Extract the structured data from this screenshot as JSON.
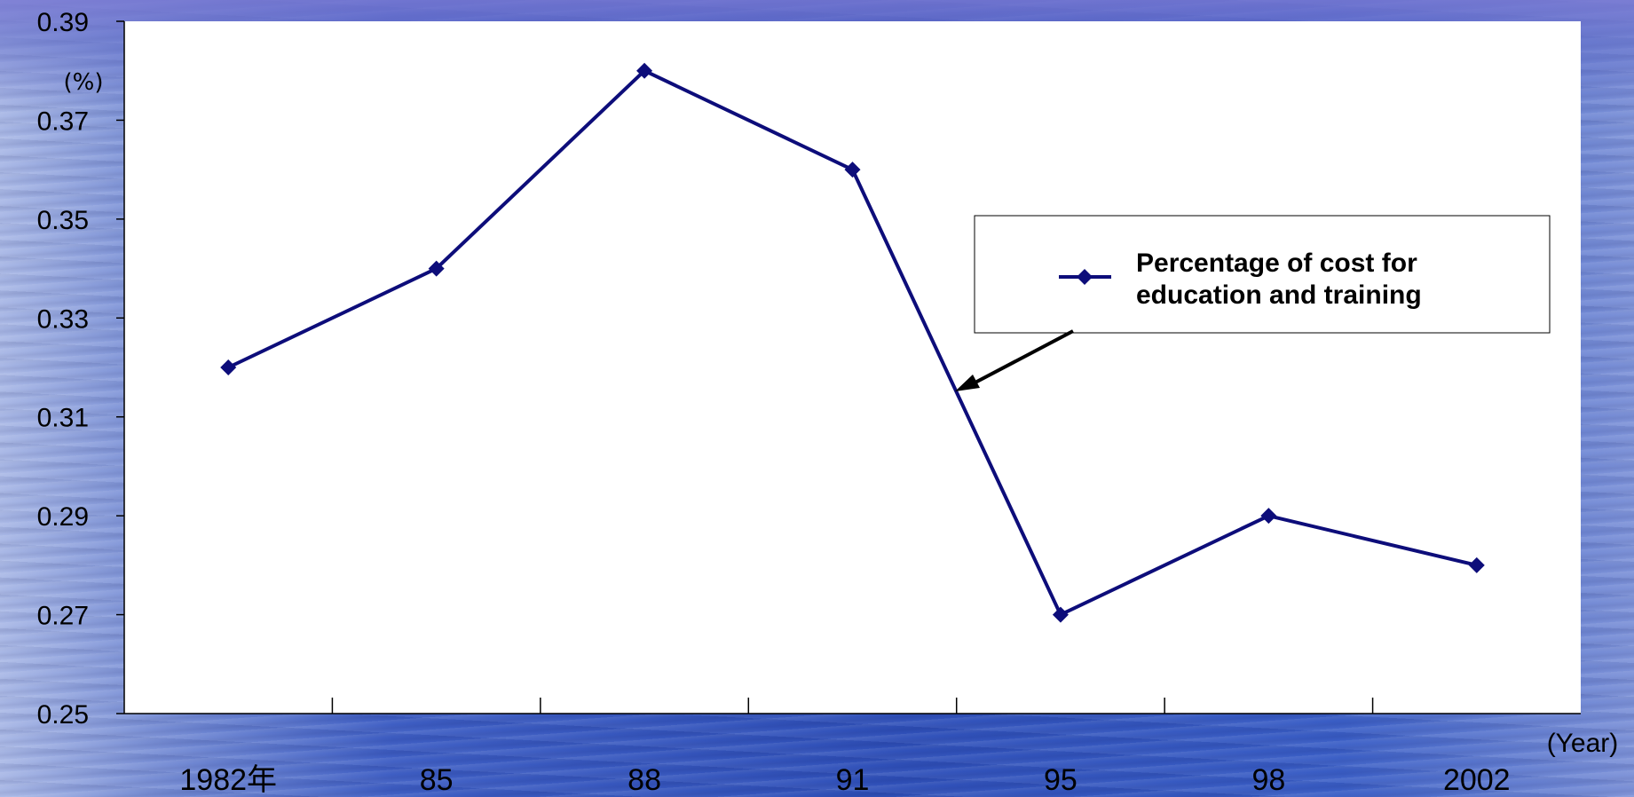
{
  "chart_data": {
    "type": "line",
    "categories": [
      "1982年",
      "85",
      "88",
      "91",
      "95",
      "98",
      "2002"
    ],
    "series": [
      {
        "name": "Percentage of cost for education and training",
        "values": [
          0.32,
          0.34,
          0.38,
          0.36,
          0.27,
          0.29,
          0.28
        ],
        "color": "#0d0d7a",
        "marker": "diamond"
      }
    ],
    "ylabel": "(%)",
    "xlabel": "(Year)",
    "ylim": [
      0.25,
      0.39
    ],
    "yticks": [
      "0.25",
      "0.27",
      "0.29",
      "0.31",
      "0.33",
      "0.35",
      "0.37",
      "0.39"
    ],
    "grid": false,
    "legend": {
      "position": "right",
      "lines": [
        "Percentage of cost for",
        "education and training"
      ]
    },
    "annotation": "arrow from legend pointing to series line"
  }
}
